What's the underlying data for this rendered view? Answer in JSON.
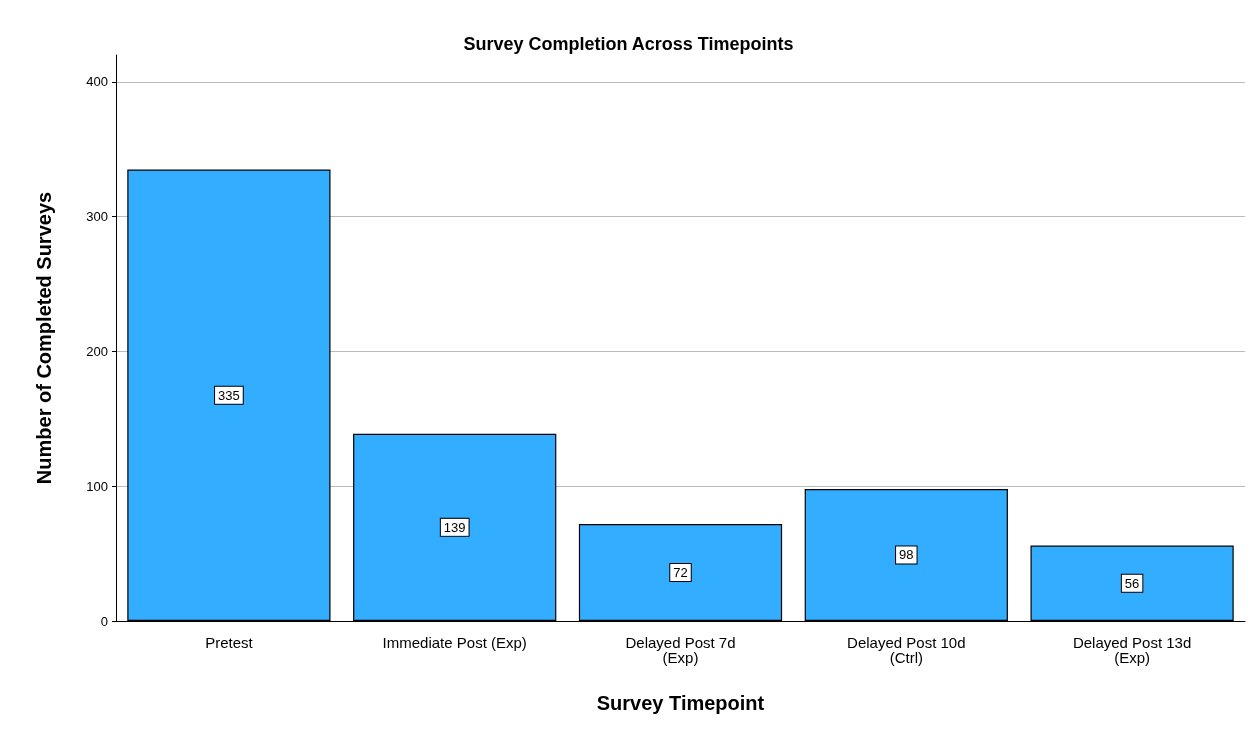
{
  "chart_data": {
    "type": "bar",
    "title": "Survey Completion Across Timepoints",
    "xlabel": "Survey Timepoint",
    "ylabel": "Number of Completed Surveys",
    "categories": [
      "Pretest",
      "Immediate Post (Exp)",
      "Delayed Post 7d\n(Exp)",
      "Delayed Post 10d\n(Ctrl)",
      "Delayed Post 13d\n(Exp)"
    ],
    "values": [
      335,
      139,
      72,
      98,
      56
    ],
    "color": "#33adff",
    "ylim": [
      0,
      420
    ],
    "yticks": [
      0,
      100,
      200,
      300,
      400
    ],
    "grid": "y",
    "data_labels": true
  }
}
